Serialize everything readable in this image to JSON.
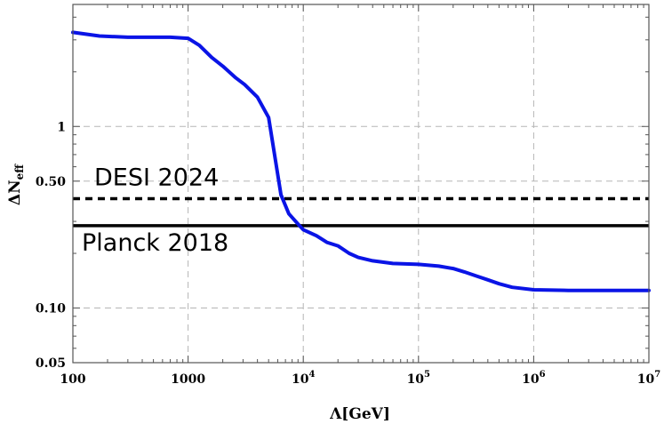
{
  "chart_data": {
    "type": "line",
    "xlabel": "Λ[GeV]",
    "ylabel": "ΔN",
    "ylabel_sub": "eff",
    "x_scale": "log",
    "y_scale": "log",
    "xlim": [
      100,
      10000000
    ],
    "ylim": [
      0.05,
      4.7
    ],
    "grid": true,
    "x_ticks": [
      {
        "value": 100,
        "label": "100"
      },
      {
        "value": 1000,
        "label": "1000"
      },
      {
        "value": 10000,
        "base": "10",
        "exp": "4"
      },
      {
        "value": 100000,
        "base": "10",
        "exp": "5"
      },
      {
        "value": 1000000,
        "base": "10",
        "exp": "6"
      },
      {
        "value": 10000000,
        "base": "10",
        "exp": "7"
      }
    ],
    "y_ticks": [
      {
        "value": 0.05,
        "label": "0.05"
      },
      {
        "value": 0.1,
        "label": "0.10"
      },
      {
        "value": 0.5,
        "label": "0.50"
      },
      {
        "value": 1,
        "label": "1"
      }
    ],
    "series": [
      {
        "color": "#0a14e6",
        "x": [
          100,
          170,
          300,
          700,
          1000,
          1250,
          1600,
          2000,
          2600,
          3100,
          4000,
          5000,
          6400,
          7500,
          9000,
          10000,
          13000,
          16000,
          20000,
          25000,
          30000,
          40000,
          60000,
          100000,
          150000,
          200000,
          250000,
          320000,
          400000,
          500000,
          650000,
          1000000,
          2000000,
          5000000,
          10000000
        ],
        "y": [
          3.3,
          3.15,
          3.1,
          3.1,
          3.06,
          2.8,
          2.4,
          2.15,
          1.85,
          1.7,
          1.45,
          1.12,
          0.42,
          0.33,
          0.29,
          0.27,
          0.25,
          0.23,
          0.22,
          0.2,
          0.19,
          0.182,
          0.176,
          0.174,
          0.17,
          0.165,
          0.158,
          0.15,
          0.143,
          0.136,
          0.13,
          0.126,
          0.125,
          0.125,
          0.125
        ]
      }
    ],
    "hlines": [
      {
        "y": 0.4,
        "style": "dashed",
        "color": "#000000",
        "label": "DESI 2024"
      },
      {
        "y": 0.284,
        "style": "solid",
        "color": "#000000",
        "label": "Planck 2018"
      }
    ]
  }
}
